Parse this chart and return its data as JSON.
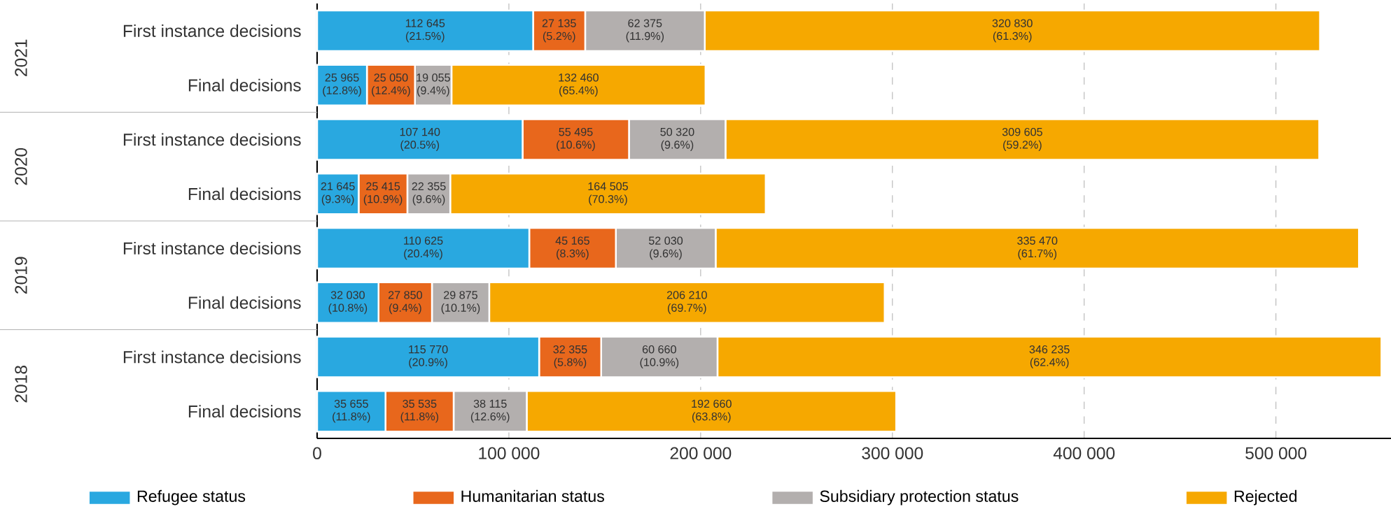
{
  "chart_data": {
    "type": "bar",
    "orientation": "horizontal",
    "stacked": true,
    "categories": [
      "First instance decisions",
      "Final decisions",
      "First instance decisions",
      "Final decisions",
      "First instance decisions",
      "Final decisions",
      "First instance decisions",
      "Final decisions"
    ],
    "annotations": [
      "2021",
      "2020",
      "2019",
      "2018"
    ],
    "series": [
      {
        "name": "Refugee status",
        "color": "#29a8e0",
        "values": [
          112645,
          25965,
          107140,
          21645,
          110625,
          32030,
          115770,
          35655
        ],
        "value_labels": [
          "112 645 (21.5%)",
          "25 965 (12.8%)",
          "107 140 (20.5%)",
          "21 645 (9.3%)",
          "110 625 (20.4%)",
          "32 030 (10.8%)",
          "115 770 (20.9%)",
          "35 655 (11.8%)"
        ]
      },
      {
        "name": "Humanitarian status",
        "color": "#e8671c",
        "values": [
          27135,
          25050,
          55495,
          25415,
          45165,
          27850,
          32355,
          35535
        ],
        "value_labels": [
          "27 135 (5.2%)",
          "25 050 (12.4%)",
          "55 495 (10.6%)",
          "25 415 (10.9%)",
          "45 165 (8.3%)",
          "27 850 (9.4%)",
          "32 355 (5.8%)",
          "35 535 (11.8%)"
        ]
      },
      {
        "name": "Subsidiary protection status",
        "color": "#b3afae",
        "values": [
          62375,
          19055,
          50320,
          22355,
          52030,
          29875,
          60660,
          38115
        ],
        "value_labels": [
          "62 375 (11.9%)",
          "19 055 (9.4%)",
          "50 320 (9.6%)",
          "22 355 (9.6%)",
          "52 030 (9.6%)",
          "29 875 (10.1%)",
          "60 660 (10.9%)",
          "38 115 (12.6%)"
        ]
      },
      {
        "name": "Rejected",
        "color": "#f6a800",
        "values": [
          320830,
          132460,
          309605,
          164505,
          335470,
          206210,
          346235,
          192660
        ],
        "value_labels": [
          "320 830 (61.3%)",
          "132 460 (65.4%)",
          "309 605 (59.2%)",
          "164 505 (70.3%)",
          "335 470 (61.7%)",
          "206 210 (69.7%)",
          "346 235 (62.4%)",
          "192 660 (63.8%)"
        ]
      }
    ],
    "xlim": [
      0,
      560000
    ],
    "xticks": [
      0,
      {
        "value": 100000,
        "label": "100 000"
      },
      {
        "value": 200000,
        "label": "200 000"
      },
      {
        "value": 300000,
        "label": "300 000"
      },
      {
        "value": 400000,
        "label": "400 000"
      },
      {
        "value": 500000,
        "label": "500 000"
      }
    ],
    "grid": "x",
    "legend": "bottom"
  }
}
